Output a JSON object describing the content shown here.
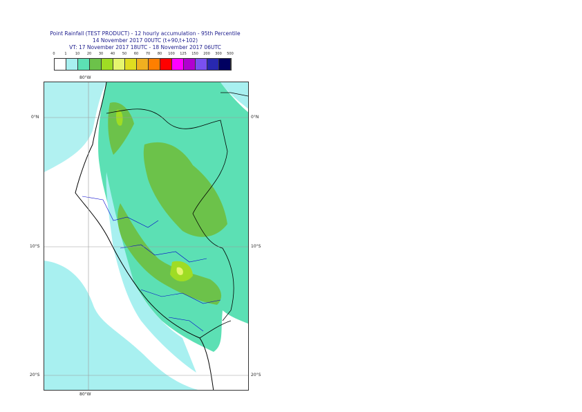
{
  "title": {
    "line1": "Point Rainfall (TEST PRODUCT) - 12 hourly accumulation - 95th Percentile",
    "line2": "14 November 2017 00UTC (t+90,t+102)",
    "line3": "VT: 17 November 2017 18UTC - 18 November 2017 06UTC"
  },
  "legend": {
    "thresholds": [
      "0",
      "1",
      "10",
      "20",
      "30",
      "40",
      "50",
      "60",
      "70",
      "80",
      "100",
      "125",
      "150",
      "200",
      "300",
      "500"
    ],
    "colors": [
      "#ffffff",
      "#a8f0f0",
      "#5ce0b4",
      "#6cc24a",
      "#9fdc24",
      "#e6f56e",
      "#e0dc20",
      "#f0b020",
      "#ff7f00",
      "#ff0000",
      "#ff00ff",
      "#b000d0",
      "#7a50f0",
      "#2828b0",
      "#000060"
    ]
  },
  "axes": {
    "lon_top": "80°W",
    "lon_bottom": "80°W",
    "lat_0_left": "0°N",
    "lat_0_right": "0°N",
    "lat_10_left": "10°S",
    "lat_10_right": "10°S",
    "lat_20_left": "20°S",
    "lat_20_right": "20°S"
  }
}
